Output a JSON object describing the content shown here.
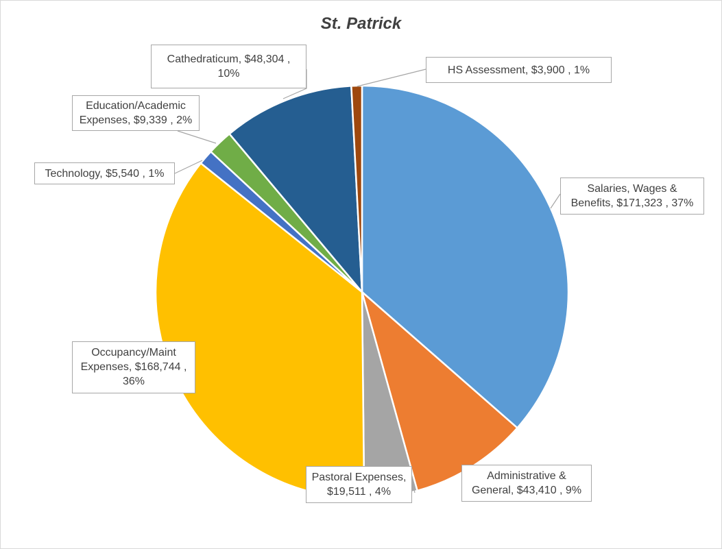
{
  "chart_data": {
    "type": "pie",
    "title": "St. Patrick",
    "slices": [
      {
        "name": "Salaries, Wages & Benefits",
        "line1": "Salaries, Wages &",
        "line2": "Benefits,  $171,323 , 37%",
        "line3": "",
        "value": 171323,
        "percent": "37%",
        "color": "#5B9BD5"
      },
      {
        "name": "Administrative & General",
        "line1": "Administrative &",
        "line2": "General,  $43,410 , 9%",
        "line3": "",
        "value": 43410,
        "percent": "9%",
        "color": "#ED7D31"
      },
      {
        "name": "Pastoral Expenses",
        "line1": "Pastoral Expenses,",
        "line2": "$19,511 , 4%",
        "line3": "",
        "value": 19511,
        "percent": "4%",
        "color": "#A5A5A5"
      },
      {
        "name": "Occupancy/Maint Expenses",
        "line1": "Occupancy/Maint",
        "line2": "Expenses,  $168,744 ,",
        "line3": "36%",
        "value": 168744,
        "percent": "36%",
        "color": "#FFC000"
      },
      {
        "name": "Technology",
        "line1": "Technology,  $5,540 , 1%",
        "line2": "",
        "line3": "",
        "value": 5540,
        "percent": "1%",
        "color": "#4472C4"
      },
      {
        "name": "Education/Academic Expenses",
        "line1": "Education/Academic",
        "line2": "Expenses,  $9,339 , 2%",
        "line3": "",
        "value": 9339,
        "percent": "2%",
        "color": "#70AD47"
      },
      {
        "name": "Cathedraticum",
        "line1": "Cathedraticum,  $48,304 ,",
        "line2": "10%",
        "line3": "",
        "value": 48304,
        "percent": "10%",
        "color": "#255E91"
      },
      {
        "name": "HS Assessment",
        "line1": "HS Assessment,  $3,900 , 1%",
        "line2": "",
        "line3": "",
        "value": 3900,
        "percent": "1%",
        "color": "#9E480E"
      }
    ]
  }
}
